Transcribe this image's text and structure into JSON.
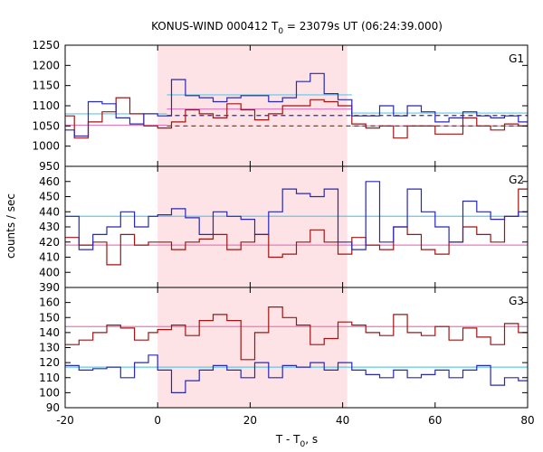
{
  "chart_data": {
    "type": "line",
    "title": "KONUS-WIND 000412 T",
    "title_sub": "0",
    "title_rest": " = 23079s UT (06:24:39.000)",
    "xlabel": "T - T",
    "xlabel_sub": "0",
    "xlabel_rest": ", s",
    "ylabel": "counts / sec",
    "xlim": [
      -20,
      80
    ],
    "x_ticks": [
      "-20",
      "0",
      "20",
      "40",
      "60",
      "80"
    ],
    "x_tick_values": [
      -20,
      0,
      20,
      40,
      60,
      80
    ],
    "shade": [
      0,
      41
    ],
    "colors": {
      "series_a": "#2828b4",
      "series_b": "#a01414",
      "mean_a": "#5fc8e8",
      "mean_b": "#e87ac0",
      "shade": "#fde3e6"
    },
    "panels": [
      {
        "label": "G1",
        "ylim": [
          950,
          1250
        ],
        "y_ticks": [
          "950",
          "1000",
          "1050",
          "1100",
          "1150",
          "1200",
          "1250"
        ],
        "y_tick_values": [
          950,
          1000,
          1050,
          1100,
          1150,
          1200,
          1250
        ],
        "bin_edges": [
          -20,
          -18,
          -15,
          -12,
          -9,
          -6,
          -3,
          0,
          3,
          6,
          9,
          12,
          15,
          18,
          21,
          24,
          27,
          30,
          33,
          36,
          39,
          42,
          45,
          48,
          51,
          54,
          57,
          60,
          63,
          66,
          69,
          72,
          75,
          78,
          80
        ],
        "series_a": [
          1040,
          1025,
          1110,
          1105,
          1070,
          1055,
          1080,
          1075,
          1165,
          1125,
          1120,
          1110,
          1120,
          1125,
          1125,
          1110,
          1120,
          1160,
          1180,
          1130,
          1115,
          1075,
          1075,
          1100,
          1075,
          1100,
          1085,
          1060,
          1070,
          1085,
          1075,
          1070,
          1075,
          1060
        ],
        "series_b": [
          1075,
          1020,
          1060,
          1085,
          1120,
          1080,
          1050,
          1045,
          1060,
          1090,
          1080,
          1070,
          1105,
          1090,
          1065,
          1080,
          1100,
          1100,
          1115,
          1110,
          1100,
          1055,
          1045,
          1050,
          1020,
          1050,
          1050,
          1030,
          1030,
          1070,
          1050,
          1040,
          1055,
          1050
        ],
        "mean_a": [
          {
            "x0": -20,
            "x1": 2,
            "y": 1080
          },
          {
            "x0": 2,
            "x1": 42,
            "y": 1127
          },
          {
            "x0": 42,
            "x1": 80,
            "y": 1082
          }
        ],
        "mean_b": [
          {
            "x0": -20,
            "x1": 2,
            "y": 1052
          },
          {
            "x0": 2,
            "x1": 42,
            "y": 1092
          },
          {
            "x0": 42,
            "x1": 80,
            "y": 1050
          }
        ],
        "dashed_a": {
          "x0": 2,
          "x1": 80,
          "y": 1076
        },
        "dashed_b": {
          "x0": 2,
          "x1": 80,
          "y": 1050
        }
      },
      {
        "label": "G2",
        "ylim": [
          390,
          470
        ],
        "y_ticks": [
          "390",
          "400",
          "410",
          "420",
          "430",
          "440",
          "450",
          "460"
        ],
        "y_tick_values": [
          390,
          400,
          410,
          420,
          430,
          440,
          450,
          460
        ],
        "bin_edges": [
          -20,
          -17,
          -14,
          -11,
          -8,
          -5,
          -2,
          0,
          3,
          6,
          9,
          12,
          15,
          18,
          21,
          24,
          27,
          30,
          33,
          36,
          39,
          42,
          45,
          48,
          51,
          54,
          57,
          60,
          63,
          66,
          69,
          72,
          75,
          78,
          80
        ],
        "series_a": [
          437,
          415,
          425,
          430,
          440,
          430,
          437,
          438,
          442,
          436,
          425,
          440,
          437,
          435,
          425,
          440,
          455,
          452,
          450,
          455,
          420,
          415,
          460,
          420,
          430,
          455,
          440,
          430,
          420,
          447,
          440,
          435,
          437,
          440
        ],
        "series_b": [
          423,
          418,
          420,
          405,
          425,
          418,
          420,
          420,
          415,
          420,
          422,
          425,
          415,
          420,
          425,
          410,
          412,
          420,
          428,
          420,
          412,
          423,
          418,
          415,
          430,
          425,
          415,
          412,
          420,
          430,
          425,
          420,
          437,
          455
        ],
        "mean_a": [
          {
            "x0": -20,
            "x1": 80,
            "y": 437
          }
        ],
        "mean_b": [
          {
            "x0": -20,
            "x1": 80,
            "y": 418
          }
        ]
      },
      {
        "label": "G3",
        "ylim": [
          90,
          170
        ],
        "y_ticks": [
          "90",
          "100",
          "110",
          "120",
          "130",
          "140",
          "150",
          "160"
        ],
        "y_tick_values": [
          90,
          100,
          110,
          120,
          130,
          140,
          150,
          160
        ],
        "bin_edges": [
          -20,
          -17,
          -14,
          -11,
          -8,
          -5,
          -2,
          0,
          3,
          6,
          9,
          12,
          15,
          18,
          21,
          24,
          27,
          30,
          33,
          36,
          39,
          42,
          45,
          48,
          51,
          54,
          57,
          60,
          63,
          66,
          69,
          72,
          75,
          78,
          80
        ],
        "series_a": [
          118,
          115,
          116,
          117,
          110,
          120,
          125,
          115,
          100,
          108,
          115,
          118,
          115,
          110,
          120,
          110,
          118,
          117,
          120,
          115,
          120,
          115,
          112,
          110,
          115,
          110,
          112,
          115,
          110,
          115,
          118,
          105,
          110,
          108
        ],
        "series_b": [
          132,
          135,
          140,
          145,
          143,
          135,
          140,
          142,
          145,
          138,
          148,
          152,
          148,
          122,
          140,
          157,
          150,
          145,
          132,
          136,
          147,
          145,
          140,
          138,
          152,
          140,
          138,
          144,
          135,
          143,
          137,
          132,
          146,
          140
        ],
        "mean_a": [
          {
            "x0": -20,
            "x1": 80,
            "y": 117
          }
        ],
        "mean_b": [
          {
            "x0": -20,
            "x1": 80,
            "y": 144
          }
        ]
      }
    ]
  }
}
